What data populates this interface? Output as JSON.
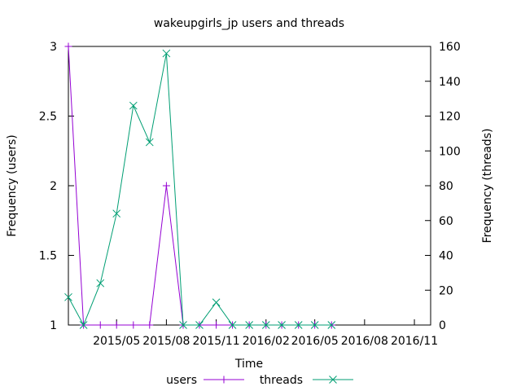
{
  "chart_data": {
    "type": "line",
    "title": "wakeupgirls_jp users and threads",
    "xlabel": "Time",
    "ylabel_left": "Frequency (users)",
    "ylabel_right": "Frequency (threads)",
    "x_ticks": [
      "2015/05",
      "2015/08",
      "2015/11",
      "2016/02",
      "2016/05",
      "2016/08",
      "2016/11"
    ],
    "xlim": [
      "2015-02-01",
      "2016-12-01"
    ],
    "y_left_lim": [
      1,
      3
    ],
    "y_left_ticks": [
      "1",
      "1.5",
      "2",
      "2.5",
      "3"
    ],
    "y_right_lim": [
      0,
      160
    ],
    "y_right_ticks": [
      "0",
      "20",
      "40",
      "60",
      "80",
      "100",
      "120",
      "140",
      "160"
    ],
    "grid": false,
    "legend_position": "bottom",
    "series": [
      {
        "name": "users",
        "axis": "left",
        "color": "#9400d3",
        "marker": "plus",
        "x": [
          "2015-02-01",
          "2015-03-01",
          "2015-04-01",
          "2015-05-01",
          "2015-06-01",
          "2015-07-01",
          "2015-08-01",
          "2015-09-01",
          "2015-10-01",
          "2015-11-01",
          "2015-12-01",
          "2016-01-01",
          "2016-02-01",
          "2016-03-01",
          "2016-04-01",
          "2016-05-01",
          "2016-06-01"
        ],
        "y": [
          3,
          1,
          1,
          1,
          1,
          1,
          2,
          1,
          1,
          1,
          1,
          1,
          1,
          1,
          1,
          1,
          1
        ]
      },
      {
        "name": "threads",
        "axis": "right",
        "color": "#009e73",
        "marker": "cross",
        "x": [
          "2015-02-01",
          "2015-03-01",
          "2015-04-01",
          "2015-05-01",
          "2015-06-01",
          "2015-07-01",
          "2015-08-01",
          "2015-09-01",
          "2015-10-01",
          "2015-11-01",
          "2015-12-01",
          "2016-01-01",
          "2016-02-01",
          "2016-03-01",
          "2016-04-01",
          "2016-05-01",
          "2016-06-01"
        ],
        "y": [
          16,
          0,
          24,
          64,
          126,
          105,
          156,
          0,
          0,
          13,
          0,
          0,
          0,
          0,
          0,
          0,
          0
        ]
      }
    ]
  }
}
